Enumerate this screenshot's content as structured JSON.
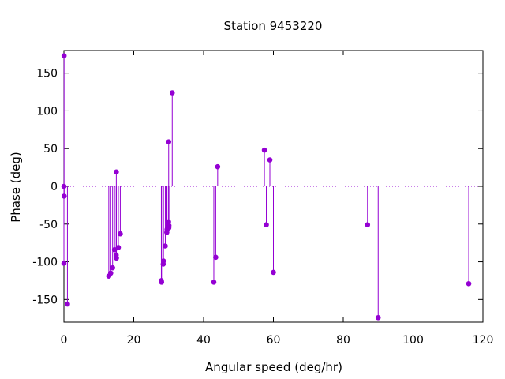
{
  "chart_data": {
    "type": "scatter",
    "style": "impulses-with-points",
    "title": "Station 9453220",
    "xlabel": "Angular speed (deg/hr)",
    "ylabel": "Phase (deg)",
    "xlim": [
      0,
      120
    ],
    "ylim": [
      -180,
      180
    ],
    "xticks": [
      0,
      20,
      40,
      60,
      80,
      100,
      120
    ],
    "yticks": [
      -150,
      -100,
      -50,
      0,
      50,
      100,
      150
    ],
    "zero_line": true,
    "grid": false,
    "series_color": "#9400d3",
    "points": [
      {
        "x": 0.0,
        "y": 0
      },
      {
        "x": 0.0,
        "y": -102
      },
      {
        "x": 0.04,
        "y": 173
      },
      {
        "x": 0.08,
        "y": -13
      },
      {
        "x": 1.0,
        "y": -156
      },
      {
        "x": 12.85,
        "y": -119
      },
      {
        "x": 13.4,
        "y": -115
      },
      {
        "x": 13.94,
        "y": -108
      },
      {
        "x": 14.49,
        "y": -84
      },
      {
        "x": 14.96,
        "y": -91
      },
      {
        "x": 15.0,
        "y": 19
      },
      {
        "x": 15.04,
        "y": -95
      },
      {
        "x": 15.59,
        "y": -81
      },
      {
        "x": 16.14,
        "y": -63
      },
      {
        "x": 27.9,
        "y": -125
      },
      {
        "x": 27.97,
        "y": -127
      },
      {
        "x": 28.44,
        "y": -103
      },
      {
        "x": 28.51,
        "y": -99
      },
      {
        "x": 29.03,
        "y": -79
      },
      {
        "x": 29.46,
        "y": -61
      },
      {
        "x": 29.53,
        "y": -57
      },
      {
        "x": 29.96,
        "y": -47
      },
      {
        "x": 30.0,
        "y": 59
      },
      {
        "x": 30.04,
        "y": -55
      },
      {
        "x": 30.08,
        "y": -52
      },
      {
        "x": 31.02,
        "y": 124
      },
      {
        "x": 42.93,
        "y": -127
      },
      {
        "x": 43.48,
        "y": -94
      },
      {
        "x": 44.03,
        "y": 26
      },
      {
        "x": 57.42,
        "y": 48
      },
      {
        "x": 57.97,
        "y": -51
      },
      {
        "x": 58.98,
        "y": 35
      },
      {
        "x": 60.0,
        "y": -114
      },
      {
        "x": 86.95,
        "y": -51
      },
      {
        "x": 90.0,
        "y": -174
      },
      {
        "x": 115.94,
        "y": -129
      }
    ]
  }
}
